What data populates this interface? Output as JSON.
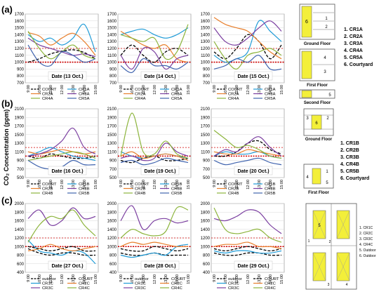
{
  "ylabel": "CO₂ Concentration (ppm)",
  "times": [
    "9:00",
    "10:00",
    "11:00",
    "12:00",
    "13:00",
    "14:00",
    "15:00"
  ],
  "threshold": {
    "primary": 1000,
    "secondary": 1200,
    "color": "#d00000"
  },
  "series_styles": {
    "COURT": {
      "color": "#000000",
      "dash": true
    },
    "outdoor": {
      "color": "#000000",
      "dash": true
    },
    "CR1": {
      "color": "#1f9bd7"
    },
    "CR2": {
      "color": "#e87f2c"
    },
    "CR3": {
      "color": "#7b3fa0"
    },
    "CR4": {
      "color": "#8cb43c"
    },
    "CR5": {
      "color": "#3f63ae"
    }
  },
  "rows": [
    {
      "label": "(a)",
      "legend_names": [
        "COURT",
        "CR1A",
        "CR2A",
        "CR3A",
        "CR4A",
        "CR5A"
      ],
      "legend_keys": [
        "COURT",
        "CR1",
        "CR2",
        "CR3",
        "CR4",
        "CR5"
      ]
    },
    {
      "label": "(b)",
      "legend_names": [
        "COURT",
        "CR1B",
        "CR2B",
        "CR3B",
        "CR4B",
        "CR5B"
      ],
      "legend_keys": [
        "COURT",
        "CR1",
        "CR2",
        "CR3",
        "CR4",
        "CR5"
      ]
    },
    {
      "label": "(c)",
      "legend_names": [
        "outdoor",
        "COURT",
        "CR1C",
        "CR2C",
        "CR3C",
        "CR4C"
      ],
      "legend_keys": [
        "outdoor",
        "COURT",
        "CR1",
        "CR2",
        "CR3",
        "CR4"
      ]
    }
  ],
  "chart_data": [
    {
      "type": "line",
      "row": 0,
      "col": 0,
      "annotation": "Date (13 Oct.)",
      "ylim": [
        700,
        1700
      ],
      "yticks": [
        700,
        800,
        900,
        1000,
        1100,
        1200,
        1300,
        1400,
        1500,
        1600,
        1700
      ],
      "x": [
        "9:00",
        "10:00",
        "11:00",
        "12:00",
        "13:00",
        "14:00",
        "15:00"
      ],
      "series": [
        {
          "key": "COURT",
          "values": [
            1000,
            1050,
            1120,
            1160,
            1180,
            1140,
            1050
          ]
        },
        {
          "key": "CR1",
          "values": [
            1400,
            1300,
            1350,
            1250,
            1350,
            1550,
            1150
          ]
        },
        {
          "key": "CR2",
          "values": [
            1430,
            1380,
            1250,
            1350,
            1420,
            1300,
            1100
          ]
        },
        {
          "key": "CR3",
          "values": [
            1350,
            1250,
            1200,
            1150,
            1100,
            1120,
            1080
          ]
        },
        {
          "key": "CR4",
          "values": [
            1450,
            1200,
            1050,
            1150,
            1250,
            1100,
            1050
          ]
        },
        {
          "key": "CR5",
          "values": [
            1250,
            1000,
            950,
            1150,
            1100,
            1000,
            1050
          ]
        }
      ]
    },
    {
      "type": "line",
      "row": 0,
      "col": 1,
      "annotation": "Date (14 Oct.)",
      "ylim": [
        700,
        1700
      ],
      "yticks": [
        700,
        800,
        900,
        1000,
        1100,
        1200,
        1300,
        1400,
        1500,
        1600,
        1700
      ],
      "x": [
        "9:00",
        "10:00",
        "11:00",
        "12:00",
        "13:00",
        "14:00",
        "15:00"
      ],
      "series": [
        {
          "key": "COURT",
          "values": [
            1100,
            1250,
            1100,
            1000,
            1150,
            1200,
            1100
          ]
        },
        {
          "key": "CR1",
          "values": [
            1400,
            1450,
            1480,
            1400,
            1350,
            1400,
            1500
          ]
        },
        {
          "key": "CR2",
          "values": [
            1450,
            1350,
            1250,
            1200,
            1250,
            1050,
            1000
          ]
        },
        {
          "key": "CR3",
          "values": [
            1100,
            900,
            1200,
            1150,
            900,
            1050,
            1100
          ]
        },
        {
          "key": "CR4",
          "values": [
            1400,
            1350,
            1300,
            1350,
            1050,
            1150,
            1550
          ]
        },
        {
          "key": "CR5",
          "values": [
            950,
            850,
            1050,
            950,
            950,
            900,
            1000
          ]
        }
      ]
    },
    {
      "type": "line",
      "row": 0,
      "col": 2,
      "annotation": "Date (15 Oct.)",
      "ylim": [
        700,
        1700
      ],
      "yticks": [
        700,
        800,
        900,
        1000,
        1100,
        1200,
        1300,
        1400,
        1500,
        1600,
        1700
      ],
      "x": [
        "9:00",
        "10:00",
        "11:00",
        "12:00",
        "13:00",
        "14:00",
        "15:00"
      ],
      "series": [
        {
          "key": "COURT",
          "values": [
            1150,
            1050,
            1200,
            1400,
            1300,
            1050,
            1250
          ]
        },
        {
          "key": "CR1",
          "values": [
            1100,
            1000,
            1050,
            1150,
            1600,
            1450,
            1300
          ]
        },
        {
          "key": "CR2",
          "values": [
            1650,
            1550,
            1500,
            1450,
            1300,
            1150,
            1050
          ]
        },
        {
          "key": "CR3",
          "values": [
            1500,
            1300,
            1250,
            1350,
            1500,
            1600,
            1450
          ]
        },
        {
          "key": "CR4",
          "values": [
            1300,
            1050,
            900,
            1100,
            1150,
            1200,
            1100
          ]
        },
        {
          "key": "CR5",
          "values": [
            900,
            950,
            1050,
            1000,
            1100,
            900,
            900
          ]
        }
      ]
    },
    {
      "type": "line",
      "row": 1,
      "col": 0,
      "annotation": "Date (16 Oct.)",
      "ylim": [
        500,
        2100
      ],
      "yticks": [
        500,
        700,
        900,
        1100,
        1300,
        1500,
        1700,
        1900,
        2100
      ],
      "x": [
        "9:00",
        "10:00",
        "11:00",
        "12:00",
        "13:00",
        "14:00",
        "15:00"
      ],
      "series": [
        {
          "key": "COURT",
          "values": [
            1000,
            950,
            1050,
            1000,
            950,
            950,
            1000
          ]
        },
        {
          "key": "CR1",
          "values": [
            1000,
            1100,
            1200,
            1100,
            1000,
            950,
            900
          ]
        },
        {
          "key": "CR2",
          "values": [
            1100,
            1050,
            1100,
            1150,
            1100,
            1050,
            1100
          ]
        },
        {
          "key": "CR3",
          "values": [
            1000,
            1050,
            1150,
            1350,
            1650,
            1200,
            1050
          ]
        },
        {
          "key": "CR4",
          "values": [
            900,
            950,
            1000,
            1050,
            1100,
            1050,
            950
          ]
        },
        {
          "key": "CR5",
          "values": [
            900,
            750,
            700,
            750,
            900,
            800,
            800
          ]
        }
      ]
    },
    {
      "type": "line",
      "row": 1,
      "col": 1,
      "annotation": "Date (19 Oct.)",
      "ylim": [
        500,
        2100
      ],
      "yticks": [
        500,
        700,
        900,
        1100,
        1300,
        1500,
        1700,
        1900,
        2100
      ],
      "x": [
        "9:00",
        "10:00",
        "11:00",
        "12:00",
        "13:00",
        "14:00",
        "15:00"
      ],
      "series": [
        {
          "key": "COURT",
          "values": [
            900,
            850,
            950,
            1000,
            900,
            900,
            950
          ]
        },
        {
          "key": "CR1",
          "values": [
            1100,
            1000,
            950,
            1000,
            1050,
            1000,
            950
          ]
        },
        {
          "key": "CR2",
          "values": [
            1000,
            1100,
            950,
            1000,
            1050,
            1000,
            900
          ]
        },
        {
          "key": "CR3",
          "values": [
            950,
            1000,
            900,
            950,
            1300,
            1100,
            1000
          ]
        },
        {
          "key": "CR4",
          "values": [
            1000,
            2000,
            1100,
            1050,
            1350,
            1050,
            950
          ]
        },
        {
          "key": "CR5",
          "values": [
            850,
            900,
            800,
            850,
            950,
            900,
            850
          ]
        }
      ]
    },
    {
      "type": "line",
      "row": 1,
      "col": 2,
      "annotation": "Date (20 Oct.)",
      "ylim": [
        500,
        2100
      ],
      "yticks": [
        500,
        700,
        900,
        1100,
        1300,
        1500,
        1700,
        1900,
        2100
      ],
      "x": [
        "9:00",
        "10:00",
        "11:00",
        "12:00",
        "13:00",
        "14:00",
        "15:00"
      ],
      "series": [
        {
          "key": "COURT",
          "values": [
            1000,
            1000,
            1100,
            1300,
            1350,
            1150,
            1050
          ]
        },
        {
          "key": "CR1",
          "values": [
            1000,
            1100,
            1050,
            1050,
            1100,
            1000,
            950
          ]
        },
        {
          "key": "CR2",
          "values": [
            1100,
            1050,
            1050,
            1150,
            1100,
            1050,
            1000
          ]
        },
        {
          "key": "CR3",
          "values": [
            1000,
            1150,
            1100,
            1300,
            1450,
            1200,
            1000
          ]
        },
        {
          "key": "CR4",
          "values": [
            1600,
            1400,
            1200,
            1250,
            1150,
            1000,
            950
          ]
        },
        {
          "key": "CR5",
          "values": [
            900,
            800,
            850,
            900,
            950,
            850,
            800
          ]
        }
      ]
    },
    {
      "type": "line",
      "row": 2,
      "col": 0,
      "annotation": "Date (27 Oct.)",
      "ylim": [
        400,
        2000
      ],
      "yticks": [
        400,
        600,
        800,
        1000,
        1200,
        1400,
        1600,
        1800,
        2000
      ],
      "x": [
        "9:00",
        "10:00",
        "11:00",
        "12:00",
        "13:00",
        "14:00",
        "15:00"
      ],
      "series": [
        {
          "key": "outdoor",
          "values": [
            950,
            850,
            800,
            850,
            850,
            800,
            800
          ]
        },
        {
          "key": "COURT",
          "values": [
            1000,
            950,
            900,
            950,
            1000,
            900,
            900
          ]
        },
        {
          "key": "CR1",
          "values": [
            1150,
            900,
            850,
            800,
            900,
            850,
            600
          ]
        },
        {
          "key": "CR2",
          "values": [
            900,
            950,
            1050,
            950,
            900,
            950,
            1000
          ]
        },
        {
          "key": "CR3",
          "values": [
            1650,
            1850,
            1500,
            1600,
            1900,
            1650,
            1700
          ]
        },
        {
          "key": "CR4",
          "values": [
            1100,
            1500,
            1700,
            1650,
            1850,
            1500,
            1250
          ]
        }
      ]
    },
    {
      "type": "line",
      "row": 2,
      "col": 1,
      "annotation": "Date (28 Oct.)",
      "ylim": [
        400,
        2000
      ],
      "yticks": [
        400,
        600,
        800,
        1000,
        1200,
        1400,
        1600,
        1800,
        2000
      ],
      "x": [
        "9:00",
        "10:00",
        "11:00",
        "12:00",
        "13:00",
        "14:00",
        "15:00"
      ],
      "series": [
        {
          "key": "outdoor",
          "values": [
            850,
            800,
            800,
            850,
            800,
            800,
            800
          ]
        },
        {
          "key": "COURT",
          "values": [
            950,
            900,
            900,
            1000,
            950,
            900,
            950
          ]
        },
        {
          "key": "CR1",
          "values": [
            800,
            750,
            800,
            850,
            800,
            1000,
            1050
          ]
        },
        {
          "key": "CR2",
          "values": [
            1000,
            1100,
            1050,
            1100,
            1050,
            1000,
            1000
          ]
        },
        {
          "key": "CR3",
          "values": [
            1600,
            1950,
            1400,
            1600,
            1650,
            1550,
            1600
          ]
        },
        {
          "key": "CR4",
          "values": [
            1200,
            1400,
            1300,
            1250,
            1350,
            1900,
            1850
          ]
        }
      ]
    },
    {
      "type": "line",
      "row": 2,
      "col": 2,
      "annotation": "Date (29 Oct.)",
      "ylim": [
        400,
        2000
      ],
      "yticks": [
        400,
        600,
        800,
        1000,
        1200,
        1400,
        1600,
        1800,
        2000
      ],
      "x": [
        "9:00",
        "10:00",
        "11:00",
        "12:00",
        "13:00",
        "14:00",
        "15:00"
      ],
      "series": [
        {
          "key": "outdoor",
          "values": [
            850,
            800,
            800,
            850,
            850,
            800,
            800
          ]
        },
        {
          "key": "COURT",
          "values": [
            950,
            900,
            950,
            1000,
            950,
            900,
            950
          ]
        },
        {
          "key": "CR1",
          "values": [
            900,
            850,
            900,
            900,
            850,
            850,
            900
          ]
        },
        {
          "key": "CR2",
          "values": [
            1000,
            1050,
            1050,
            1100,
            1000,
            1000,
            950
          ]
        },
        {
          "key": "CR3",
          "values": [
            1650,
            1600,
            1700,
            1850,
            1800,
            1500,
            1300
          ]
        },
        {
          "key": "CR4",
          "values": [
            1900,
            1400,
            1300,
            1350,
            1400,
            1200,
            1100
          ]
        }
      ]
    }
  ],
  "floorplans": {
    "a": {
      "labels": [
        "Ground Floor",
        "First Floor",
        "Second Floor"
      ],
      "legend": [
        "1. CR1A",
        "2. CR2A",
        "3. CR3A",
        "4. CR4A",
        "5. CR5A",
        "6. Courtyard"
      ],
      "numbers": [
        "6",
        "1",
        "2",
        "4",
        "3",
        "5"
      ]
    },
    "b": {
      "labels": [
        "Ground Floor",
        "First Floor"
      ],
      "legend": [
        "1. CR1B",
        "2. CR2B",
        "3. CR3B",
        "4. CR4B",
        "5. CR5B",
        "6. Courtyard"
      ],
      "numbers": [
        "3",
        "6",
        "2",
        "4",
        "1",
        "5"
      ]
    },
    "c": {
      "legend": [
        "1. CR1C",
        "2. CR2C",
        "3. CR3C",
        "4. CR4C",
        "5. Outdoor",
        "6. Outdoor"
      ],
      "numbers": [
        "5",
        "1",
        "2",
        "3",
        "4"
      ]
    }
  }
}
